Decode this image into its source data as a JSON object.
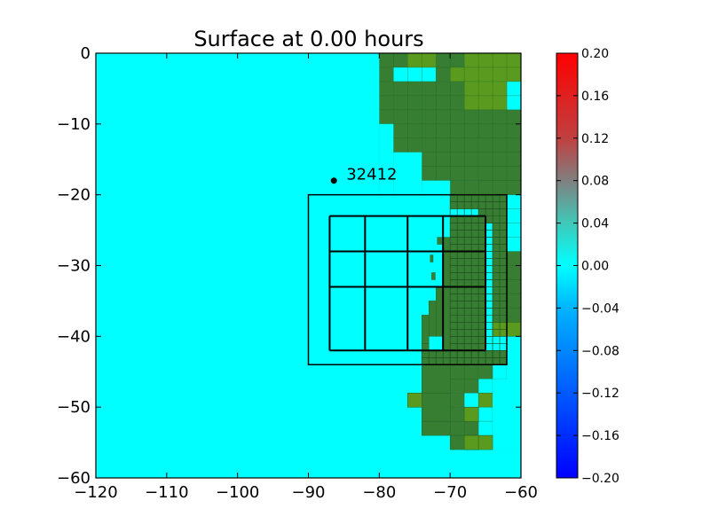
{
  "chart_data": {
    "type": "heatmap",
    "title": "Surface at 0.00 hours",
    "xlim": [
      -120,
      -60
    ],
    "ylim": [
      -60,
      0
    ],
    "x_ticks": [
      "−120",
      "−110",
      "−100",
      "−90",
      "−80",
      "−70",
      "−60"
    ],
    "x_tick_values": [
      -120,
      -110,
      -100,
      -90,
      -80,
      -70,
      -60
    ],
    "y_ticks": [
      "0",
      "−10",
      "−20",
      "−30",
      "−40",
      "−50",
      "−60"
    ],
    "y_tick_values": [
      0,
      -10,
      -20,
      -30,
      -40,
      -50,
      -60
    ],
    "surface_value": 0.0,
    "colors": {
      "water": "#00ffff",
      "land": "#377e33",
      "land_light": "#5a9a1e",
      "gridline": "#000000"
    },
    "colorbar": {
      "range": [
        -0.2,
        0.2
      ],
      "ticks": [
        "0.20",
        "0.16",
        "0.12",
        "0.08",
        "0.04",
        "0.00",
        "−0.04",
        "−0.08",
        "−0.12",
        "−0.16",
        "−0.20"
      ],
      "tick_values": [
        0.2,
        0.16,
        0.12,
        0.08,
        0.04,
        0.0,
        -0.04,
        -0.08,
        -0.12,
        -0.16,
        -0.2
      ],
      "stops": [
        {
          "v": -0.2,
          "color": "#0000ff"
        },
        {
          "v": -0.04,
          "color": "#00b4ff"
        },
        {
          "v": 0.0,
          "color": "#00ffff"
        },
        {
          "v": 0.04,
          "color": "#40c8b8"
        },
        {
          "v": 0.08,
          "color": "#808080"
        },
        {
          "v": 0.12,
          "color": "#c04040"
        },
        {
          "v": 0.2,
          "color": "#ff0000"
        }
      ]
    },
    "gauge": {
      "label": "32412",
      "lon": -86.4,
      "lat": -18.0
    },
    "amr_regions": [
      {
        "level": 2,
        "lon": [
          -90,
          -62
        ],
        "lat": [
          -44,
          -20
        ],
        "cell": 1.0
      },
      {
        "level": 3,
        "lon": [
          -87,
          -65
        ],
        "lat": [
          -42,
          -23
        ]
      }
    ],
    "level3_lines": {
      "lon": [
        -87,
        -82,
        -76,
        -71,
        -65
      ],
      "lat": [
        -23,
        -28,
        -33,
        -42
      ]
    },
    "land_cells": [
      [
        -80,
        -2,
        -76,
        0
      ],
      [
        -72,
        -4,
        -68,
        0
      ],
      [
        -66,
        -8,
        -62,
        -6
      ],
      [
        -68,
        -12,
        -62,
        -8
      ],
      [
        -80,
        -10,
        -78,
        -2
      ],
      [
        -78,
        -14,
        -74,
        -4
      ],
      [
        -74,
        -18,
        -66,
        -4
      ],
      [
        -66,
        -20,
        -62,
        -8
      ],
      [
        -62,
        -20,
        -60,
        -8
      ],
      [
        -70,
        -22,
        -62,
        -18
      ],
      [
        -66,
        -24,
        -62,
        -20
      ],
      [
        -64,
        -38,
        -62,
        -20
      ],
      [
        -62,
        -40,
        -60,
        -28
      ],
      [
        -62,
        -42,
        -60,
        -40
      ],
      [
        -70,
        -42,
        -65,
        -23
      ],
      [
        -71,
        -42,
        -70,
        -26
      ],
      [
        -72,
        -40,
        -71,
        -33
      ],
      [
        -73,
        -40,
        -72,
        -35
      ],
      [
        -74,
        -41,
        -73,
        -37
      ],
      [
        -72.8,
        -29.5,
        -72.4,
        -28.5
      ],
      [
        -71.8,
        -27,
        -71.2,
        -26
      ],
      [
        -72.6,
        -32,
        -72.1,
        -31
      ],
      [
        -70,
        -44,
        -62,
        -42
      ],
      [
        -70,
        -48,
        -66,
        -44
      ],
      [
        -66,
        -46,
        -64,
        -44
      ],
      [
        -74,
        -46,
        -70,
        -44
      ],
      [
        -74,
        -48,
        -70,
        -46
      ],
      [
        -74,
        -52,
        -70,
        -48
      ],
      [
        -70,
        -50,
        -68,
        -48
      ],
      [
        -66,
        -50,
        -64,
        -48
      ],
      [
        -70,
        -54,
        -66,
        -50
      ],
      [
        -68,
        -56,
        -66,
        -54
      ],
      [
        -76,
        -50,
        -74,
        -48
      ],
      [
        -74,
        -54,
        -72,
        -52
      ],
      [
        -72,
        -54,
        -70,
        -52
      ],
      [
        -74,
        -43,
        -73,
        -41
      ]
    ],
    "land_light_cells": [
      [
        -76,
        -2,
        -72,
        0
      ],
      [
        -68,
        -4,
        -62,
        0
      ],
      [
        -62,
        -4,
        -60,
        0
      ],
      [
        -68,
        -8,
        -62,
        -4
      ],
      [
        -70,
        -4,
        -68,
        -2
      ],
      [
        -62,
        -40,
        -60,
        -38
      ],
      [
        -64,
        -40,
        -62,
        -38
      ],
      [
        -66,
        -46,
        -64,
        -48
      ],
      [
        -68,
        -52,
        -66,
        -50
      ],
      [
        -66,
        -56,
        -64,
        -54
      ],
      [
        -66,
        -50,
        -64,
        -48
      ]
    ],
    "grid_lon": [
      -80,
      -78,
      -76,
      -74,
      -72,
      -70,
      -68,
      -66,
      -64,
      -62,
      -60
    ],
    "grid_lat": [
      0,
      -2,
      -4,
      -6,
      -8,
      -10,
      -12,
      -14,
      -16,
      -18,
      -20,
      -22,
      -24,
      -26,
      -28,
      -30,
      -32,
      -34,
      -36,
      -38,
      -40,
      -42,
      -44,
      -46,
      -48,
      -50,
      -52,
      -54,
      -56
    ]
  }
}
